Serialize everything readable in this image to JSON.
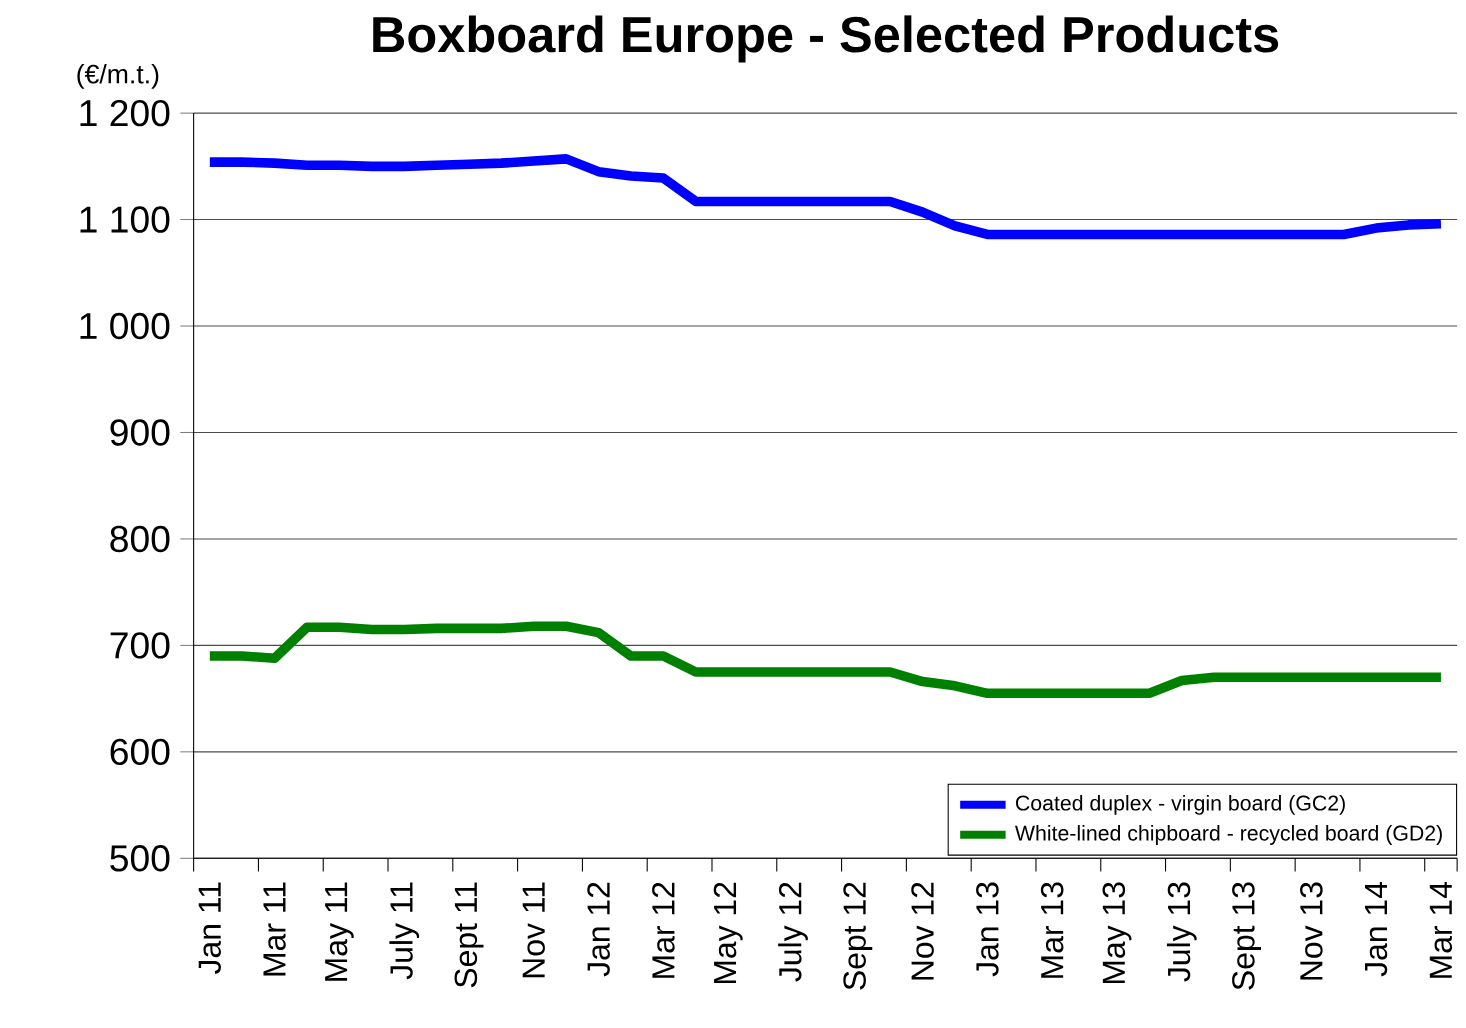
{
  "chart_data": {
    "type": "line",
    "title": "Boxboard Europe - Selected Products",
    "ylabel": "(€/m.t.)",
    "categories": [
      "Jan 11",
      null,
      "Mar 11",
      null,
      "May 11",
      null,
      "July 11",
      null,
      "Sept 11",
      null,
      "Nov 11",
      null,
      "Jan 12",
      null,
      "Mar 12",
      null,
      "May 12",
      null,
      "July 12",
      null,
      "Sept 12",
      null,
      "Nov 12",
      null,
      "Jan 13",
      null,
      "Mar 13",
      null,
      "May 13",
      null,
      "July 13",
      null,
      "Sept 13",
      null,
      "Nov 13",
      null,
      "Jan 14",
      null,
      "Mar 14"
    ],
    "series": [
      {
        "name": "Coated duplex - virgin board (GC2)",
        "color": "#0000ff",
        "values": [
          1154,
          1154,
          1153,
          1151,
          1151,
          1150,
          1150,
          1151,
          1152,
          1153,
          1155,
          1157,
          1145,
          1141,
          1139,
          1117,
          1117,
          1117,
          1117,
          1117,
          1117,
          1117,
          1107,
          1094,
          1086,
          1086,
          1086,
          1086,
          1086,
          1086,
          1086,
          1086,
          1086,
          1086,
          1086,
          1086,
          1092,
          1095,
          1096
        ]
      },
      {
        "name": "White-lined chipboard - recycled board (GD2)",
        "color": "#008000",
        "values": [
          690,
          690,
          688,
          717,
          717,
          715,
          715,
          716,
          716,
          716,
          718,
          718,
          712,
          690,
          690,
          675,
          675,
          675,
          675,
          675,
          675,
          675,
          666,
          662,
          655,
          655,
          655,
          655,
          655,
          655,
          667,
          670,
          670,
          670,
          670,
          670,
          670,
          670,
          670
        ]
      }
    ],
    "ylim": [
      500,
      1200
    ],
    "yticks": [
      500,
      600,
      700,
      800,
      900,
      {
        "value": 1000,
        "label": "1 000"
      },
      {
        "value": 1100,
        "label": "1 100"
      },
      {
        "value": 1200,
        "label": "1 200"
      }
    ],
    "grid": "y",
    "legend": "bottom right",
    "line_style": "solid",
    "marker": "none"
  }
}
